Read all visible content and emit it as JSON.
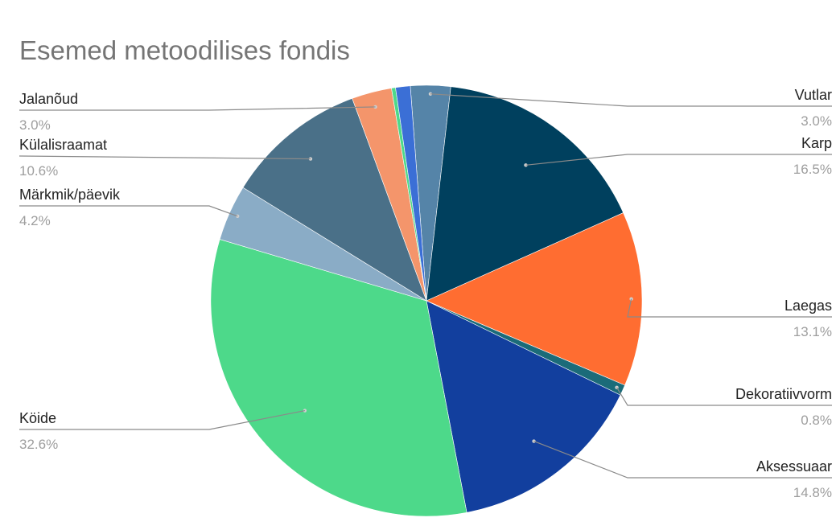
{
  "chart_data": {
    "type": "pie",
    "title": "Esemed metoodilises fondis",
    "slices": [
      {
        "label": "Vutlar",
        "value": 3.0,
        "pct_label": "3.0%",
        "color": "#5584a8"
      },
      {
        "label": "Karp",
        "value": 16.5,
        "pct_label": "16.5%",
        "color": "#00405e"
      },
      {
        "label": "Laegas",
        "value": 13.1,
        "pct_label": "13.1%",
        "color": "#ff6d31"
      },
      {
        "label": "Dekoratiivvorm",
        "value": 0.8,
        "pct_label": "0.8%",
        "color": "#1b6b79"
      },
      {
        "label": "Aksessuaar",
        "value": 14.8,
        "pct_label": "14.8%",
        "color": "#123f9e"
      },
      {
        "label": "Köide",
        "value": 32.6,
        "pct_label": "32.6%",
        "color": "#4dd98a"
      },
      {
        "label": "Märkmik/päevik",
        "value": 4.2,
        "pct_label": "4.2%",
        "color": "#8aacc6"
      },
      {
        "label": "Külalisraamat",
        "value": 10.6,
        "pct_label": "10.6%",
        "color": "#4a7088"
      },
      {
        "label": "Jalanõud",
        "value": 3.0,
        "pct_label": "3.0%",
        "color": "#f4956b"
      },
      {
        "label": "",
        "value": 0.3,
        "pct_label": "",
        "color": "#4dd98a"
      },
      {
        "label": "",
        "value": 1.1,
        "pct_label": "",
        "color": "#3b6fd6"
      }
    ],
    "legend": "side labels with leader lines"
  }
}
